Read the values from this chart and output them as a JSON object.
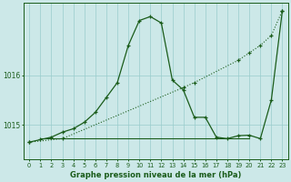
{
  "title": "Graphe pression niveau de la mer (hPa)",
  "bg_color": "#cce8e8",
  "line_color": "#1a5c1a",
  "grid_color": "#99cccc",
  "xlim": [
    -0.5,
    23.5
  ],
  "ylim": [
    1014.3,
    1017.45
  ],
  "yticks": [
    1015,
    1016
  ],
  "xticks": [
    0,
    1,
    2,
    3,
    4,
    5,
    6,
    7,
    8,
    9,
    10,
    11,
    12,
    13,
    14,
    15,
    16,
    17,
    18,
    19,
    20,
    21,
    22,
    23
  ],
  "curve_x": [
    0,
    1,
    2,
    3,
    4,
    5,
    6,
    7,
    8,
    9,
    10,
    11,
    12,
    13,
    14,
    15,
    16,
    17,
    18,
    19,
    20,
    21,
    22,
    23
  ],
  "curve_y": [
    1014.65,
    1014.7,
    1014.75,
    1014.85,
    1014.92,
    1015.05,
    1015.25,
    1015.55,
    1015.85,
    1016.6,
    1017.1,
    1017.18,
    1017.05,
    1015.9,
    1015.7,
    1015.15,
    1015.15,
    1014.75,
    1014.72,
    1014.78,
    1014.79,
    1014.72,
    1015.5,
    1017.3
  ],
  "diagonal_x": [
    0,
    3,
    14,
    15,
    19,
    20,
    21,
    22,
    23
  ],
  "diagonal_y": [
    1014.65,
    1014.72,
    1015.75,
    1015.85,
    1016.3,
    1016.45,
    1016.6,
    1016.8,
    1017.3
  ],
  "flat_x": [
    1,
    2,
    3,
    4,
    5,
    6,
    7,
    8,
    9,
    10,
    11,
    12,
    13,
    14,
    15,
    16,
    17,
    18,
    19,
    20
  ],
  "flat_y": [
    1014.72,
    1014.72,
    1014.72,
    1014.72,
    1014.72,
    1014.72,
    1014.72,
    1014.72,
    1014.72,
    1014.72,
    1014.72,
    1014.72,
    1014.72,
    1014.72,
    1014.72,
    1014.72,
    1014.72,
    1014.72,
    1014.72,
    1014.72
  ]
}
